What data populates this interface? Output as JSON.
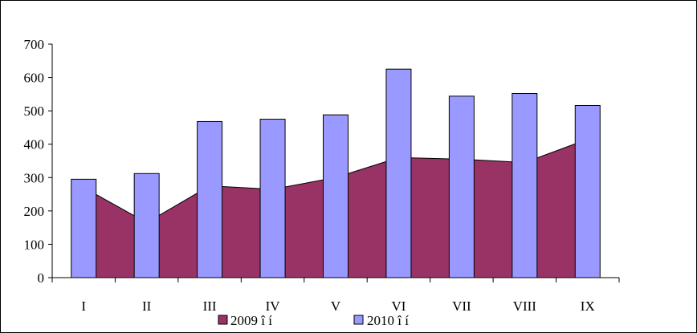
{
  "chart_data": {
    "type": "bar",
    "categories": [
      "I",
      "II",
      "III",
      "IV",
      "V",
      "VI",
      "VII",
      "VIII",
      "IX"
    ],
    "series": [
      {
        "name": "2009 î í",
        "chart_type": "area",
        "color": "#993366",
        "values": [
          270,
          165,
          275,
          265,
          300,
          360,
          355,
          345,
          415
        ]
      },
      {
        "name": "2010 î í",
        "chart_type": "bar",
        "color": "#9999ff",
        "values": [
          295,
          312,
          468,
          475,
          488,
          625,
          544,
          552,
          516
        ]
      }
    ],
    "yticks": [
      0,
      100,
      200,
      300,
      400,
      500,
      600,
      700
    ],
    "ylim": [
      0,
      700
    ],
    "grid": false,
    "legend_position": "bottom",
    "title": "",
    "xlabel": "",
    "ylabel": ""
  }
}
